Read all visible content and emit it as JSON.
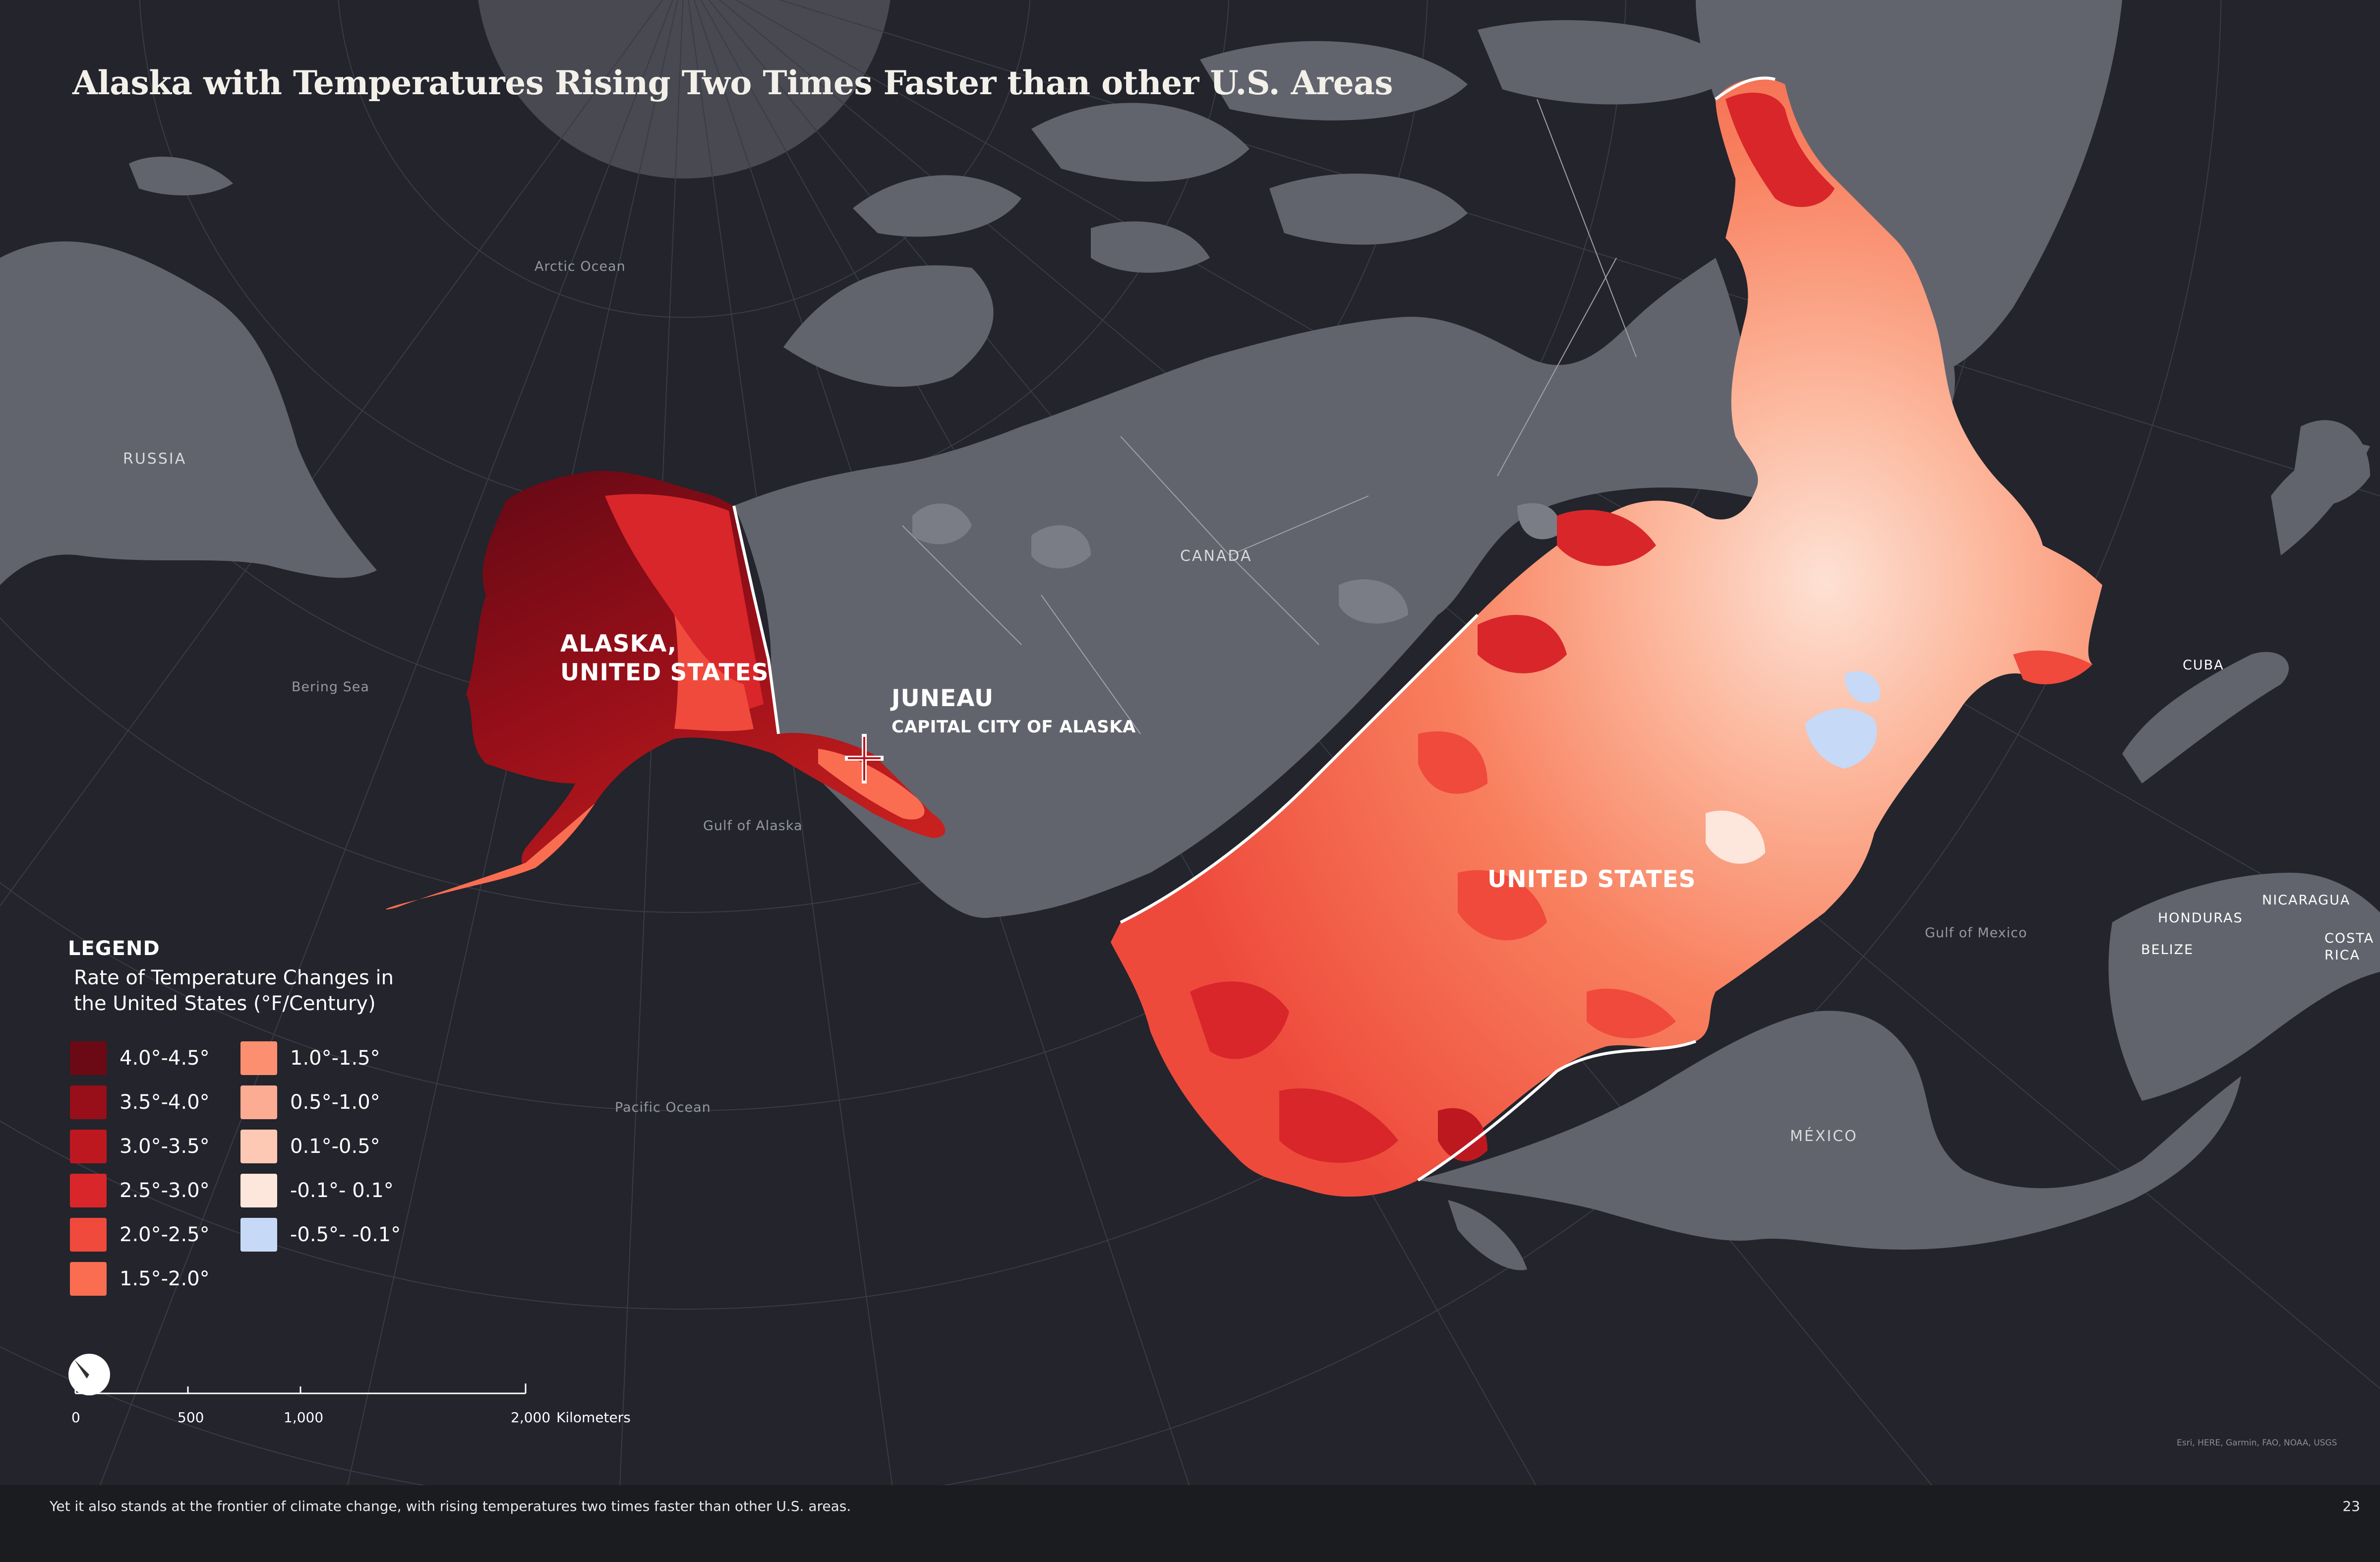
{
  "title": "Alaska with Temperatures Rising Two Times Faster than other U.S. Areas",
  "labels": {
    "alaska": "ALASKA,",
    "alaska_sub": "UNITED STATES",
    "juneau": "JUNEAU",
    "juneau_sub": "CAPITAL CITY OF ALASKA",
    "united_states": "UNITED STATES",
    "canada": "CANADA",
    "russia": "RUSSIA",
    "mexico": "MÉXICO",
    "cuba": "CUBA",
    "honduras": "HONDURAS",
    "belize": "BELIZE",
    "nicaragua": "NICARAGUA",
    "costa_rica_1": "COSTA",
    "costa_rica_2": "RICA",
    "arctic_ocean": "Arctic Ocean",
    "bering_sea": "Bering Sea",
    "gulf_of_alaska": "Gulf of Alaska",
    "pacific_ocean": "Pacific Ocean",
    "gulf_of_mexico": "Gulf of Mexico"
  },
  "legend": {
    "heading": "LEGEND",
    "subtitle_line1": "Rate of Temperature Changes in",
    "subtitle_line2": "the United States (°F/Century)",
    "items": [
      {
        "label": "4.0°-4.5°",
        "color": "#6b0a15"
      },
      {
        "label": "3.5°-4.0°",
        "color": "#980f19"
      },
      {
        "label": "3.0°-3.5°",
        "color": "#bd1820"
      },
      {
        "label": "2.5°-3.0°",
        "color": "#d9262a"
      },
      {
        "label": "2.0°-2.5°",
        "color": "#ef4a3c"
      },
      {
        "label": "1.5°-2.0°",
        "color": "#fb6d51"
      },
      {
        "label": "1.0°-1.5°",
        "color": "#fb8f6f"
      },
      {
        "label": "0.5°-1.0°",
        "color": "#fcac92"
      },
      {
        "label": "0.1°-0.5°",
        "color": "#fdc9b4"
      },
      {
        "label": "-0.1°- 0.1°",
        "color": "#fde6dc"
      },
      {
        "label": "-0.5°- -0.1°",
        "color": "#c6d9f7"
      }
    ]
  },
  "scale_bar": {
    "ticks": [
      "0",
      "500",
      "1,000",
      "2,000"
    ],
    "unit": "Kilometers"
  },
  "attribution": "Esri, HERE, Garmin, FAO, NOAA, USGS",
  "caption": "Yet it also stands at the frontier of climate change, with rising temperatures two times faster than other U.S. areas.",
  "page_number": "23",
  "colors": {
    "ocean": "#23242c",
    "land": "#62646d",
    "graticule": "#3a3c46",
    "footer": "#1b1c20"
  }
}
